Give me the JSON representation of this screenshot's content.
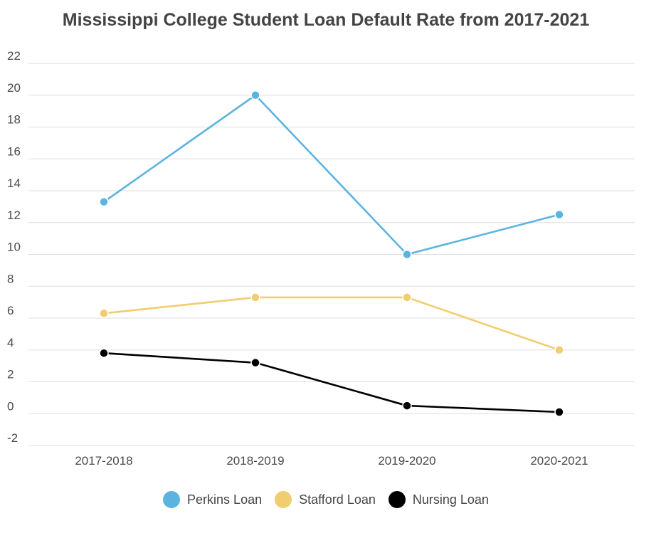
{
  "chart_data": {
    "type": "line",
    "title": "Mississippi College Student Loan Default Rate from 2017-2021",
    "xlabel": "",
    "ylabel": "",
    "categories": [
      "2017-2018",
      "2018-2019",
      "2019-2020",
      "2020-2021"
    ],
    "ylim": [
      -2,
      22
    ],
    "yticks": [
      -2,
      0,
      2,
      4,
      6,
      8,
      10,
      12,
      14,
      16,
      18,
      20,
      22
    ],
    "grid": true,
    "legend_position": "bottom",
    "series": [
      {
        "name": "Perkins Loan",
        "color": "#5db3e0",
        "values": [
          13.3,
          20.0,
          10.0,
          12.5
        ]
      },
      {
        "name": "Stafford Loan",
        "color": "#f0cd6e",
        "values": [
          6.3,
          7.3,
          7.3,
          4.0
        ]
      },
      {
        "name": "Nursing Loan",
        "color": "#000000",
        "values": [
          3.8,
          3.2,
          0.5,
          0.1
        ]
      }
    ]
  }
}
